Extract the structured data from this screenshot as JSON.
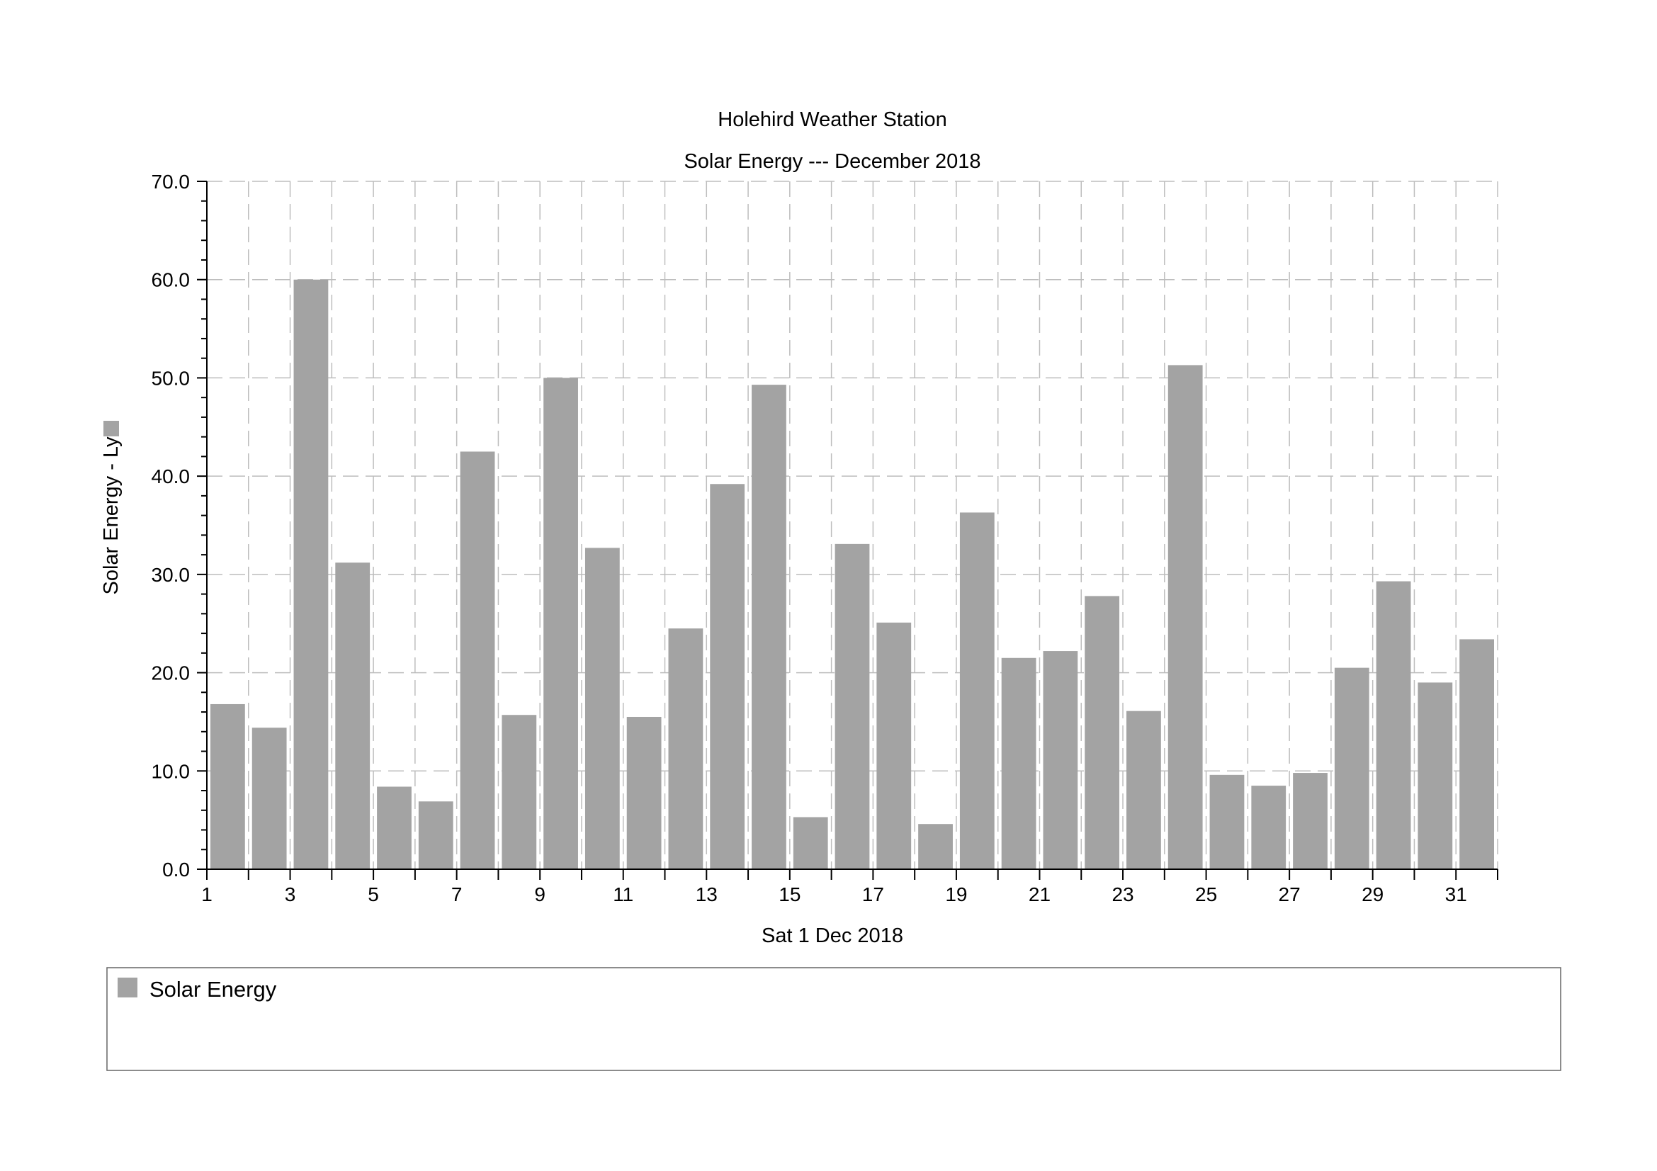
{
  "chart_data": {
    "type": "bar",
    "title": "Holehird Weather Station",
    "subtitle": "Solar Energy --- December 2018",
    "xlabel": "Sat 1 Dec 2018",
    "ylabel": "Solar Energy - Ly",
    "ylim": [
      0,
      70
    ],
    "yticks": [
      "0.0",
      "10.0",
      "20.0",
      "30.0",
      "40.0",
      "50.0",
      "60.0",
      "70.0"
    ],
    "xticks": [
      "1",
      "3",
      "5",
      "7",
      "9",
      "11",
      "13",
      "15",
      "17",
      "19",
      "21",
      "23",
      "25",
      "27",
      "29",
      "31"
    ],
    "grid": true,
    "legend_position": "bottom",
    "series": [
      {
        "name": "Solar Energy",
        "color": "#a3a3a3",
        "x": [
          1,
          2,
          3,
          4,
          5,
          6,
          7,
          8,
          9,
          10,
          11,
          12,
          13,
          14,
          15,
          16,
          17,
          18,
          19,
          20,
          21,
          22,
          23,
          24,
          25,
          26,
          27,
          28,
          29,
          30,
          31
        ],
        "values": [
          16.8,
          14.4,
          60.0,
          31.2,
          8.4,
          6.9,
          42.5,
          15.7,
          50.0,
          32.7,
          15.5,
          24.5,
          39.2,
          49.3,
          5.3,
          33.1,
          25.1,
          4.6,
          36.3,
          21.5,
          22.2,
          27.8,
          16.1,
          51.3,
          9.6,
          8.5,
          9.8,
          20.5,
          29.3,
          19.0,
          23.4
        ]
      }
    ]
  }
}
